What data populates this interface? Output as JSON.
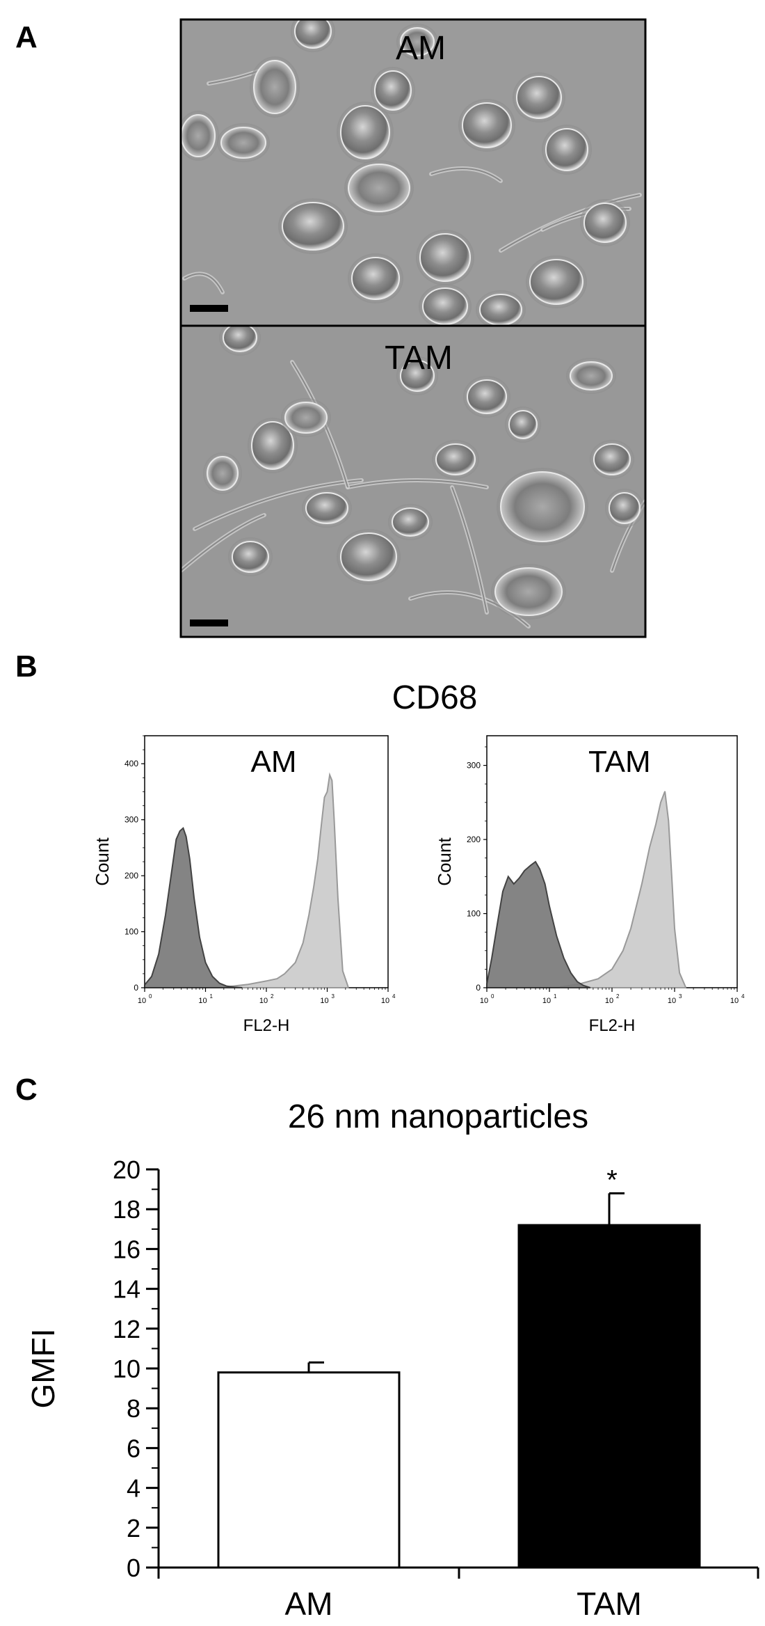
{
  "panels": {
    "a": {
      "letter": "A",
      "images": [
        {
          "label": "AM",
          "description_name": "phase-contrast-micrograph-am"
        },
        {
          "label": "TAM",
          "description_name": "phase-contrast-micrograph-tam"
        }
      ]
    },
    "b": {
      "letter": "B",
      "title": "CD68",
      "histograms": [
        {
          "label": "AM",
          "xlabel": "FL2-H",
          "ylabel": "Count",
          "yticks": [
            0,
            100,
            200,
            300,
            400
          ],
          "ymax": 450,
          "xticks": [
            "10",
            "10",
            "10",
            "10",
            "10"
          ],
          "xexp": [
            "0",
            "1",
            "2",
            "3",
            "4"
          ]
        },
        {
          "label": "TAM",
          "xlabel": "FL2-H",
          "ylabel": "Count",
          "yticks": [
            0,
            100,
            200,
            300
          ],
          "ymax": 340,
          "xticks": [
            "10",
            "10",
            "10",
            "10",
            "10"
          ],
          "xexp": [
            "0",
            "1",
            "2",
            "3",
            "4"
          ]
        }
      ]
    },
    "c": {
      "letter": "C"
    }
  },
  "chart_data": [
    {
      "type": "area",
      "title": "CD68",
      "panel_label": "AM",
      "xlabel": "FL2-H",
      "ylabel": "Count",
      "xscale": "log",
      "xlim": [
        1,
        10000
      ],
      "ylim": [
        0,
        450
      ],
      "series": [
        {
          "color": "#7a7a7a",
          "x": [
            1,
            1.3,
            1.7,
            2.2,
            2.8,
            3.3,
            3.8,
            4.3,
            4.8,
            5.5,
            6.5,
            8,
            10,
            13,
            17,
            22,
            30,
            40
          ],
          "y": [
            5,
            20,
            60,
            130,
            210,
            265,
            280,
            285,
            270,
            230,
            160,
            90,
            45,
            20,
            8,
            3,
            1,
            0
          ]
        },
        {
          "color": "#cfcfcf",
          "x": [
            20,
            50,
            100,
            150,
            200,
            300,
            400,
            500,
            600,
            700,
            800,
            900,
            1000,
            1100,
            1200,
            1300,
            1500,
            1800,
            2200
          ],
          "y": [
            1,
            6,
            12,
            16,
            25,
            45,
            80,
            130,
            180,
            230,
            290,
            340,
            350,
            380,
            370,
            300,
            160,
            30,
            2
          ]
        }
      ]
    },
    {
      "type": "area",
      "panel_label": "TAM",
      "xlabel": "FL2-H",
      "ylabel": "Count",
      "xscale": "log",
      "xlim": [
        1,
        10000
      ],
      "ylim": [
        0,
        340
      ],
      "series": [
        {
          "color": "#7a7a7a",
          "x": [
            1,
            1.2,
            1.5,
            1.8,
            2.2,
            2.7,
            3.3,
            4,
            5,
            6,
            7,
            8.5,
            10,
            13,
            17,
            22,
            28,
            35,
            45
          ],
          "y": [
            5,
            40,
            90,
            130,
            150,
            140,
            148,
            158,
            165,
            170,
            160,
            140,
            110,
            70,
            40,
            20,
            8,
            3,
            0
          ]
        },
        {
          "color": "#cfcfcf",
          "x": [
            15,
            30,
            60,
            100,
            150,
            200,
            300,
            400,
            500,
            600,
            700,
            800,
            900,
            1000,
            1200,
            1500
          ],
          "y": [
            1,
            5,
            12,
            25,
            50,
            80,
            140,
            190,
            220,
            250,
            265,
            225,
            150,
            80,
            20,
            1
          ]
        }
      ]
    },
    {
      "type": "bar",
      "title": "26 nm nanoparticles",
      "ylabel": "GMFI",
      "categories": [
        "AM",
        "TAM"
      ],
      "values": [
        9.8,
        17.2
      ],
      "errors": [
        0.5,
        1.6
      ],
      "colors": [
        "#ffffff",
        "#000000"
      ],
      "significance": [
        "",
        "*"
      ],
      "ylim": [
        0,
        20
      ],
      "yticks": [
        0,
        2,
        4,
        6,
        8,
        10,
        12,
        14,
        16,
        18,
        20
      ]
    }
  ]
}
